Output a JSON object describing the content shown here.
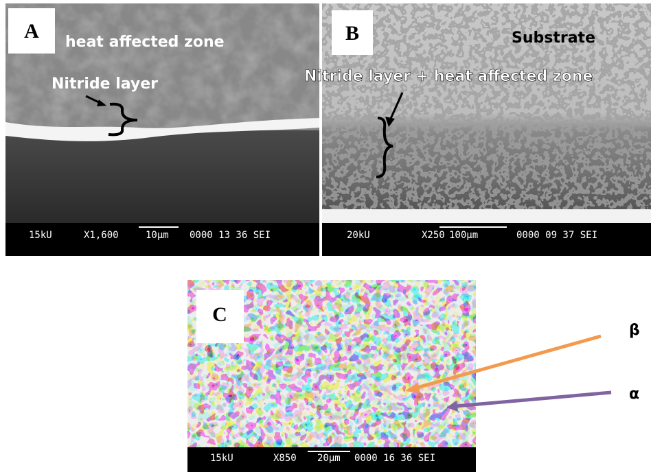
{
  "panels": [
    {
      "label": "A",
      "annotations": [
        "heat affected zone",
        "Nitride layer"
      ],
      "info_bar": {
        "voltage": "15kU",
        "magnification": "X1,600",
        "scale": "10μm",
        "code": "0000 13 36 SEI"
      }
    },
    {
      "label": "B",
      "annotations": [
        "Substrate",
        "Nitride layer + heat affected zone"
      ],
      "info_bar": {
        "voltage": "20kU",
        "magnification": "X250",
        "scale": "100μm",
        "code": "0000 09 37 SEI"
      }
    },
    {
      "label": "C",
      "annotations": [
        "β",
        "α"
      ],
      "info_bar": {
        "voltage": "15kU",
        "magnification": "X850",
        "scale": "20μm",
        "code": "0000 16 36 SEI"
      }
    }
  ]
}
